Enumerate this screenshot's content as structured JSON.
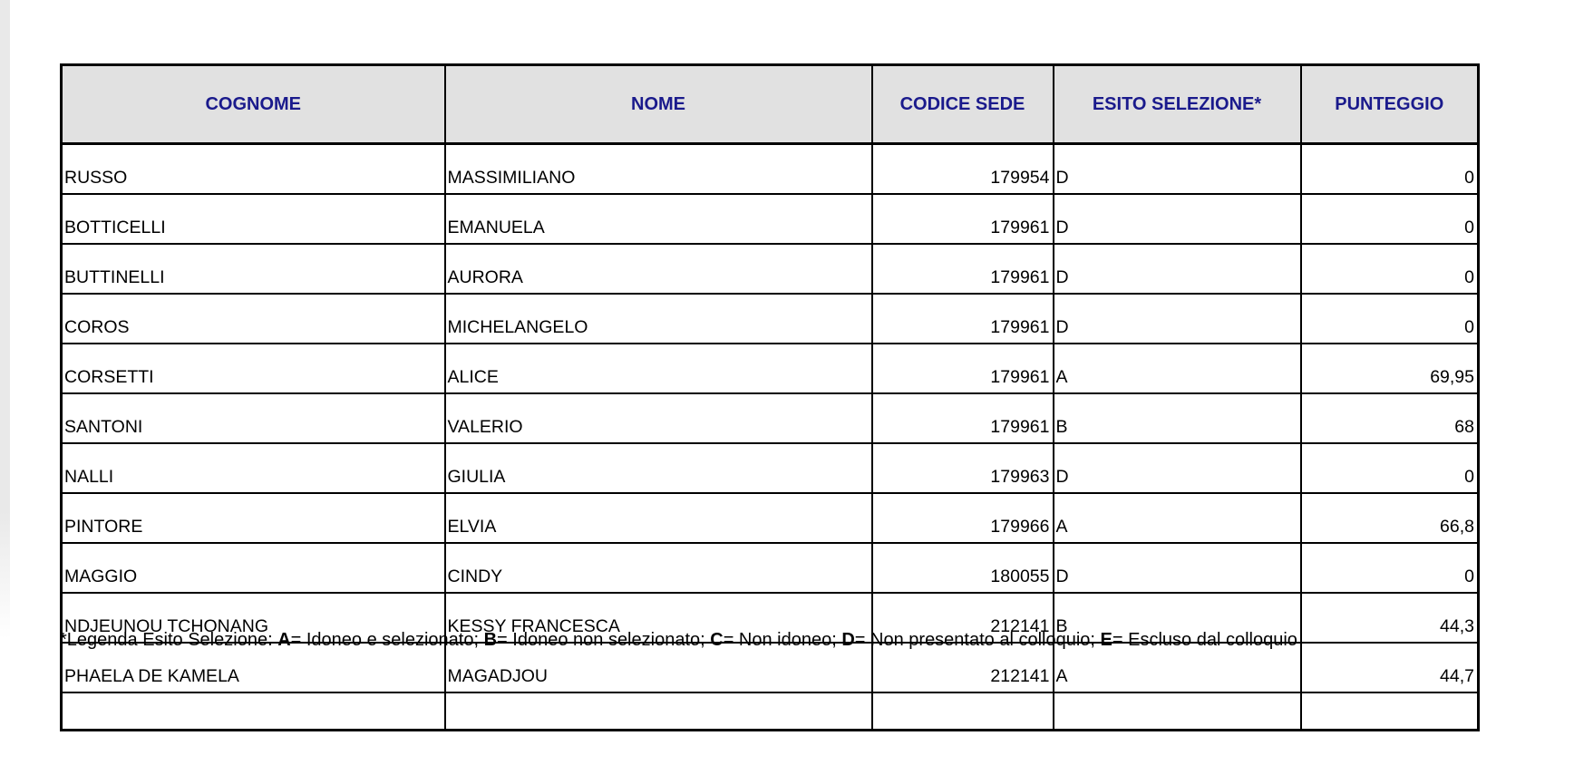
{
  "colors": {
    "header_bg": "#e1e1e1",
    "header_text": "#1a1a8c",
    "border": "#000000",
    "page_bg": "#ffffff"
  },
  "table": {
    "columns": [
      "COGNOME",
      "NOME",
      "CODICE SEDE",
      "ESITO SELEZIONE*",
      "PUNTEGGIO"
    ],
    "rows": [
      {
        "cognome": "RUSSO",
        "nome": "MASSIMILIANO",
        "codice_sede": "179954",
        "esito": "D",
        "punteggio": "0"
      },
      {
        "cognome": "BOTTICELLI",
        "nome": "EMANUELA",
        "codice_sede": "179961",
        "esito": "D",
        "punteggio": "0"
      },
      {
        "cognome": "BUTTINELLI",
        "nome": "AURORA",
        "codice_sede": "179961",
        "esito": "D",
        "punteggio": "0"
      },
      {
        "cognome": "COROS",
        "nome": "MICHELANGELO",
        "codice_sede": "179961",
        "esito": "D",
        "punteggio": "0"
      },
      {
        "cognome": "CORSETTI",
        "nome": "ALICE",
        "codice_sede": "179961",
        "esito": "A",
        "punteggio": "69,95"
      },
      {
        "cognome": "SANTONI",
        "nome": "VALERIO",
        "codice_sede": "179961",
        "esito": "B",
        "punteggio": "68"
      },
      {
        "cognome": "NALLI",
        "nome": "GIULIA",
        "codice_sede": "179963",
        "esito": "D",
        "punteggio": "0"
      },
      {
        "cognome": "PINTORE",
        "nome": "ELVIA",
        "codice_sede": "179966",
        "esito": "A",
        "punteggio": "66,8"
      },
      {
        "cognome": "MAGGIO",
        "nome": "CINDY",
        "codice_sede": "180055",
        "esito": "D",
        "punteggio": "0"
      },
      {
        "cognome": "NDJEUNOU TCHONANG",
        "nome": "KESSY FRANCESCA",
        "codice_sede": "212141",
        "esito": "B",
        "punteggio": "44,3"
      },
      {
        "cognome": "PHAELA DE KAMELA",
        "nome": "MAGADJOU",
        "codice_sede": "212141",
        "esito": "A",
        "punteggio": "44,7"
      }
    ]
  },
  "legend": {
    "segments": [
      {
        "text": "*Legenda Esito Selezione: ",
        "bold": false
      },
      {
        "text": "A",
        "bold": true
      },
      {
        "text": "= Idoneo e selezionato; ",
        "bold": false
      },
      {
        "text": "B",
        "bold": true
      },
      {
        "text": "= Idoneo non selezionato; ",
        "bold": false
      },
      {
        "text": "C",
        "bold": true
      },
      {
        "text": "= Non idoneo; ",
        "bold": false
      },
      {
        "text": "D",
        "bold": true
      },
      {
        "text": "= Non presentato al colloquio; ",
        "bold": false
      },
      {
        "text": "E",
        "bold": true
      },
      {
        "text": "= Escluso dal colloquio",
        "bold": false
      }
    ]
  }
}
